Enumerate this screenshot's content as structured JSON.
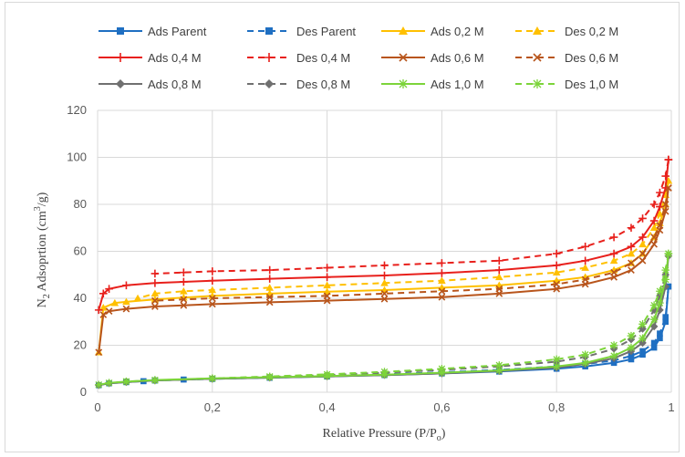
{
  "chart_data": {
    "type": "line",
    "xlabel": "Relative  Pressure  (P/P",
    "xlabel_sub": "o",
    "xlabel_end": ")",
    "ylabel": "N",
    "ylabel_sub": "2",
    "ylabel_mid": " Adsoprtion  (cm",
    "ylabel_sup": "3",
    "ylabel_end": "/g)",
    "xlim": [
      0,
      1
    ],
    "ylim": [
      0,
      120
    ],
    "xticks": [
      0,
      0.2,
      0.4,
      0.6,
      0.8,
      1
    ],
    "xtick_labels": [
      "0",
      "0,2",
      "0,4",
      "0,6",
      "0,8",
      "1"
    ],
    "yticks": [
      0,
      20,
      40,
      60,
      80,
      100,
      120
    ],
    "ytick_labels": [
      "0",
      "20",
      "40",
      "60",
      "80",
      "100",
      "120"
    ],
    "grid": true,
    "legend_position": "top",
    "series": [
      {
        "name": "Ads Parent",
        "color": "#1f6fc2",
        "dash": false,
        "marker": "square",
        "x": [
          0.002,
          0.02,
          0.05,
          0.08,
          0.1,
          0.15,
          0.2,
          0.3,
          0.4,
          0.5,
          0.6,
          0.7,
          0.8,
          0.85,
          0.9,
          0.93,
          0.95,
          0.97,
          0.98,
          0.99,
          0.995
        ],
        "y": [
          3,
          3.8,
          4.3,
          4.7,
          5,
          5.4,
          5.7,
          6.2,
          6.7,
          7.3,
          8,
          8.8,
          10,
          11,
          12.5,
          14,
          16,
          19,
          23,
          30,
          45
        ]
      },
      {
        "name": "Des Parent",
        "color": "#1f6fc2",
        "dash": true,
        "marker": "square",
        "x": [
          0.995,
          0.99,
          0.98,
          0.97,
          0.95,
          0.93,
          0.9,
          0.85,
          0.8,
          0.7,
          0.6,
          0.5,
          0.4,
          0.3,
          0.2,
          0.1,
          0.05
        ],
        "y": [
          45,
          32,
          25,
          21,
          17.5,
          15.5,
          13.5,
          12,
          11,
          9.5,
          8.5,
          7.6,
          6.8,
          6.2,
          5.7,
          5,
          4.5
        ]
      },
      {
        "name": "Ads 0,2 M",
        "color": "#ffc000",
        "dash": false,
        "marker": "triangle",
        "x": [
          0.002,
          0.01,
          0.03,
          0.05,
          0.1,
          0.15,
          0.2,
          0.3,
          0.4,
          0.5,
          0.6,
          0.7,
          0.8,
          0.85,
          0.9,
          0.93,
          0.95,
          0.97,
          0.98,
          0.99,
          0.995
        ],
        "y": [
          17,
          36,
          38,
          38.5,
          39.5,
          40.3,
          41,
          42,
          42.8,
          43.5,
          44.5,
          45.5,
          47.5,
          49,
          52,
          55,
          59,
          66,
          72,
          80,
          90
        ]
      },
      {
        "name": "Des 0,2 M",
        "color": "#ffc000",
        "dash": true,
        "marker": "triangle",
        "x": [
          0.995,
          0.99,
          0.98,
          0.97,
          0.95,
          0.93,
          0.9,
          0.85,
          0.8,
          0.7,
          0.6,
          0.5,
          0.4,
          0.3,
          0.2,
          0.15,
          0.1,
          0.07
        ],
        "y": [
          90,
          84,
          76,
          70,
          63,
          59,
          56,
          53,
          51,
          49,
          47.5,
          46.5,
          45.5,
          44.5,
          43.5,
          43,
          42,
          40
        ]
      },
      {
        "name": "Ads 0,4 M",
        "color": "#e8201c",
        "dash": false,
        "marker": "plus",
        "x": [
          0.002,
          0.01,
          0.02,
          0.05,
          0.1,
          0.15,
          0.2,
          0.3,
          0.4,
          0.5,
          0.6,
          0.7,
          0.8,
          0.85,
          0.9,
          0.93,
          0.95,
          0.97,
          0.98,
          0.99,
          0.995
        ],
        "y": [
          35,
          42,
          44,
          45.5,
          46.5,
          47,
          47.5,
          48.3,
          49,
          49.7,
          50.7,
          52,
          54,
          56,
          59,
          62,
          66,
          73,
          79,
          87,
          99
        ]
      },
      {
        "name": "Des 0,4 M",
        "color": "#e8201c",
        "dash": true,
        "marker": "plus",
        "x": [
          0.995,
          0.99,
          0.98,
          0.97,
          0.95,
          0.93,
          0.9,
          0.85,
          0.8,
          0.7,
          0.6,
          0.5,
          0.4,
          0.3,
          0.2,
          0.15,
          0.1
        ],
        "y": [
          99,
          92,
          85,
          80,
          74,
          70,
          66,
          62,
          59,
          56,
          55,
          54,
          53,
          52,
          51.5,
          51,
          50.5
        ]
      },
      {
        "name": "Ads 0,6 M",
        "color": "#b8551c",
        "dash": false,
        "marker": "x",
        "x": [
          0.002,
          0.01,
          0.02,
          0.05,
          0.1,
          0.15,
          0.2,
          0.3,
          0.4,
          0.5,
          0.6,
          0.7,
          0.8,
          0.85,
          0.9,
          0.93,
          0.95,
          0.97,
          0.98,
          0.99,
          0.995
        ],
        "y": [
          17,
          33,
          34.5,
          35.5,
          36.5,
          37,
          37.5,
          38.3,
          39,
          39.7,
          40.5,
          42,
          44,
          46,
          49,
          52,
          56,
          63,
          69,
          77,
          87
        ]
      },
      {
        "name": "Des 0,6 M",
        "color": "#b8551c",
        "dash": true,
        "marker": "x",
        "x": [
          0.995,
          0.99,
          0.98,
          0.97,
          0.95,
          0.93,
          0.9,
          0.85,
          0.8,
          0.7,
          0.6,
          0.5,
          0.4,
          0.3,
          0.2,
          0.15,
          0.1
        ],
        "y": [
          87,
          80,
          71,
          66,
          59,
          55,
          51,
          48,
          46,
          44,
          43,
          42,
          41,
          40.5,
          40,
          39.5,
          39
        ]
      },
      {
        "name": "Ads 0,8 M",
        "color": "#707070",
        "dash": false,
        "marker": "diamond",
        "x": [
          0.002,
          0.02,
          0.05,
          0.1,
          0.2,
          0.3,
          0.4,
          0.5,
          0.6,
          0.7,
          0.8,
          0.85,
          0.9,
          0.93,
          0.95,
          0.97,
          0.98,
          0.99,
          0.995
        ],
        "y": [
          3,
          3.8,
          4.3,
          5,
          5.7,
          6.2,
          6.7,
          7.3,
          8,
          9,
          10.5,
          12,
          14.5,
          17.5,
          21,
          28,
          35,
          45,
          58
        ]
      },
      {
        "name": "Des 0,8 M",
        "color": "#707070",
        "dash": true,
        "marker": "diamond",
        "x": [
          0.995,
          0.99,
          0.98,
          0.97,
          0.95,
          0.93,
          0.9,
          0.85,
          0.8,
          0.7,
          0.6,
          0.5,
          0.4,
          0.3,
          0.2,
          0.1,
          0.05
        ],
        "y": [
          58,
          50,
          41,
          35,
          27,
          22.5,
          18.5,
          15,
          13,
          11,
          9.5,
          8.3,
          7.3,
          6.5,
          5.8,
          5,
          4.5
        ]
      },
      {
        "name": "Ads 1,0 M",
        "color": "#7cd43a",
        "dash": false,
        "marker": "star",
        "x": [
          0.002,
          0.02,
          0.05,
          0.1,
          0.2,
          0.3,
          0.4,
          0.5,
          0.6,
          0.7,
          0.8,
          0.85,
          0.9,
          0.93,
          0.95,
          0.97,
          0.98,
          0.99,
          0.995
        ],
        "y": [
          3.2,
          4,
          4.5,
          5.2,
          5.9,
          6.4,
          6.9,
          7.5,
          8.3,
          9.3,
          11,
          12.5,
          15.5,
          19,
          23,
          31,
          38,
          48,
          59
        ]
      },
      {
        "name": "Des 1,0 M",
        "color": "#7cd43a",
        "dash": true,
        "marker": "star",
        "x": [
          0.995,
          0.99,
          0.98,
          0.97,
          0.95,
          0.93,
          0.9,
          0.85,
          0.8,
          0.7,
          0.6,
          0.5,
          0.4,
          0.3,
          0.2,
          0.1,
          0.05
        ],
        "y": [
          59,
          52,
          43,
          37,
          29,
          24,
          20,
          16,
          14,
          11.5,
          10,
          8.7,
          7.6,
          6.7,
          5.9,
          5.1,
          4.6
        ]
      }
    ]
  }
}
